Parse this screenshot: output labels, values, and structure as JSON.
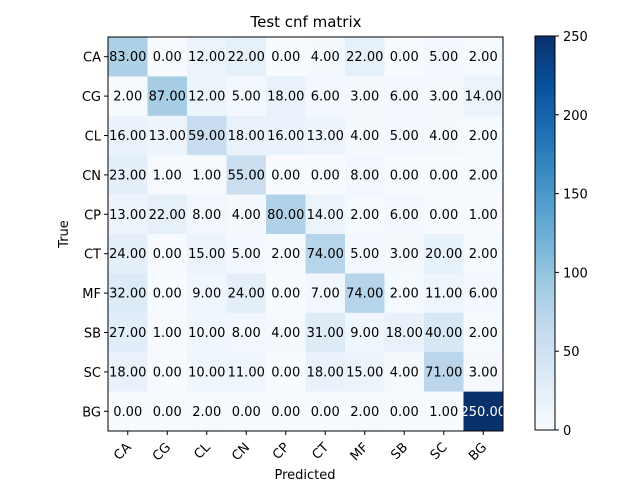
{
  "chart_data": {
    "type": "heatmap",
    "title": "Test cnf matrix",
    "xlabel": "Predicted",
    "ylabel": "True",
    "x_categories": [
      "CA",
      "CG",
      "CL",
      "CN",
      "CP",
      "CT",
      "MF",
      "SB",
      "SC",
      "BG"
    ],
    "y_categories": [
      "CA",
      "CG",
      "CL",
      "CN",
      "CP",
      "CT",
      "MF",
      "SB",
      "SC",
      "BG"
    ],
    "values": [
      [
        83,
        0,
        12,
        22,
        0,
        4,
        22,
        0,
        5,
        2
      ],
      [
        2,
        87,
        12,
        5,
        18,
        6,
        3,
        6,
        3,
        14
      ],
      [
        16,
        13,
        59,
        18,
        16,
        13,
        4,
        5,
        4,
        2
      ],
      [
        23,
        1,
        1,
        55,
        0,
        0,
        8,
        0,
        0,
        2
      ],
      [
        13,
        22,
        8,
        4,
        80,
        14,
        2,
        6,
        0,
        1
      ],
      [
        24,
        0,
        15,
        5,
        2,
        74,
        5,
        3,
        20,
        2
      ],
      [
        32,
        0,
        9,
        24,
        0,
        7,
        74,
        2,
        11,
        6
      ],
      [
        27,
        1,
        10,
        8,
        4,
        31,
        9,
        18,
        40,
        2
      ],
      [
        18,
        0,
        10,
        11,
        0,
        18,
        15,
        4,
        71,
        3
      ],
      [
        0,
        0,
        2,
        0,
        0,
        0,
        2,
        0,
        1,
        250
      ]
    ],
    "value_format": "2 decimals",
    "colormap": "Blues",
    "vmin": 0,
    "vmax": 250,
    "colorbar_ticks": [
      0,
      50,
      100,
      150,
      200,
      250
    ],
    "colorbar_tick_labels": [
      "0",
      "50",
      "100",
      "150",
      "200",
      "250"
    ],
    "grid": false,
    "x_tick_rotation_deg": 45
  }
}
